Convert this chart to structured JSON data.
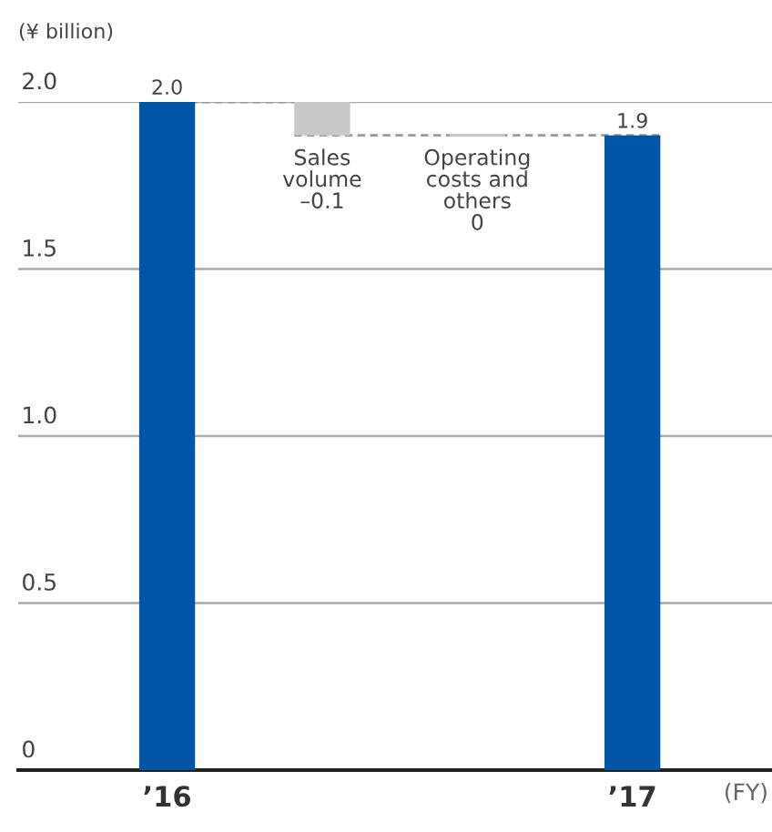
{
  "chart_data": {
    "type": "bar",
    "ylabel": "(¥ billion)",
    "xlabel": "(FY)",
    "categories": [
      "’16",
      null,
      null,
      "’17"
    ],
    "values": [
      2.0,
      -0.1,
      0,
      1.9
    ],
    "base": [
      0,
      2.0,
      1.9,
      0
    ],
    "colors": [
      "#0055a8",
      "#c8c9ca",
      "#c8c9ca",
      "#0055a8"
    ],
    "value_labels": [
      "2.0",
      "Sales\nvolume\n–0.1",
      "Operating\ncosts and\nothers\n0",
      "1.9"
    ],
    "ylim": [
      0,
      2.0
    ],
    "yticks": [
      0,
      {
        "value": 0.5,
        "label": "0.5"
      },
      {
        "value": 1.0,
        "label": "1.0"
      },
      {
        "value": 1.5,
        "label": "1.5"
      },
      {
        "value": 2.0,
        "label": "2.0"
      }
    ],
    "grid": "y"
  }
}
